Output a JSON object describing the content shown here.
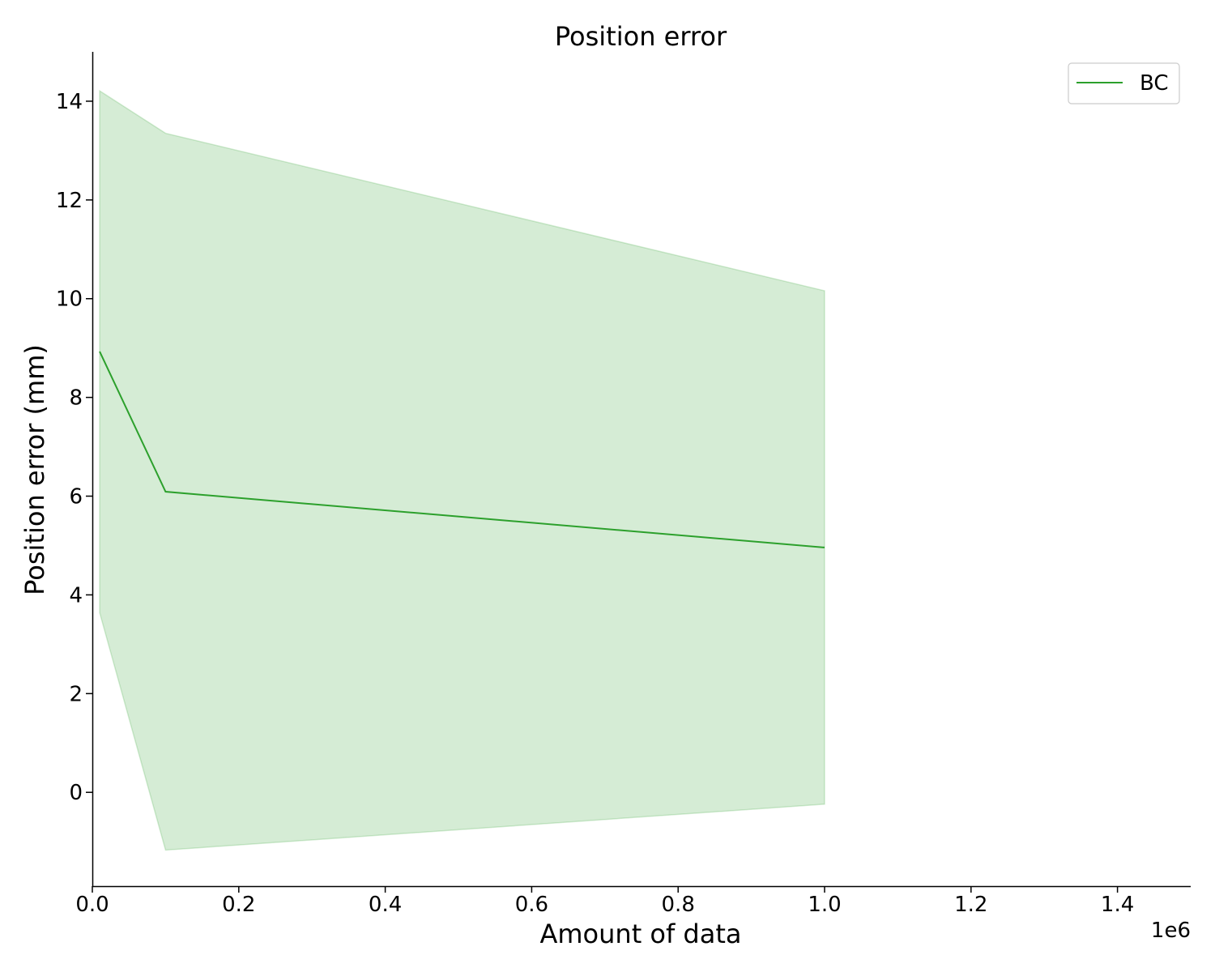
{
  "chart_data": {
    "type": "line",
    "title": "Position error",
    "xlabel": "Amount of data",
    "ylabel": "Position error (mm)",
    "x_offset_label": "1e6",
    "xlim": [
      0.0,
      1.5
    ],
    "ylim": [
      -1.9,
      15.0
    ],
    "x_ticks": [
      0.0,
      0.2,
      0.4,
      0.6,
      0.8,
      1.0,
      1.2,
      1.4
    ],
    "x_tick_labels": [
      "0.0",
      "0.2",
      "0.4",
      "0.6",
      "0.8",
      "1.0",
      "1.2",
      "1.4"
    ],
    "y_ticks": [
      0,
      2,
      4,
      6,
      8,
      10,
      12,
      14
    ],
    "y_tick_labels": [
      "0",
      "2",
      "4",
      "6",
      "8",
      "10",
      "12",
      "14"
    ],
    "grid": false,
    "legend_position": "top-right",
    "series": [
      {
        "name": "BC",
        "color": "#2ca02c",
        "band_color": "#2ca02c",
        "x": [
          0.01,
          0.1,
          1.0
        ],
        "y": [
          8.93,
          6.09,
          4.96
        ],
        "band_upper": [
          14.21,
          13.35,
          10.16
        ],
        "band_lower": [
          3.64,
          -1.17,
          -0.24
        ]
      }
    ]
  }
}
